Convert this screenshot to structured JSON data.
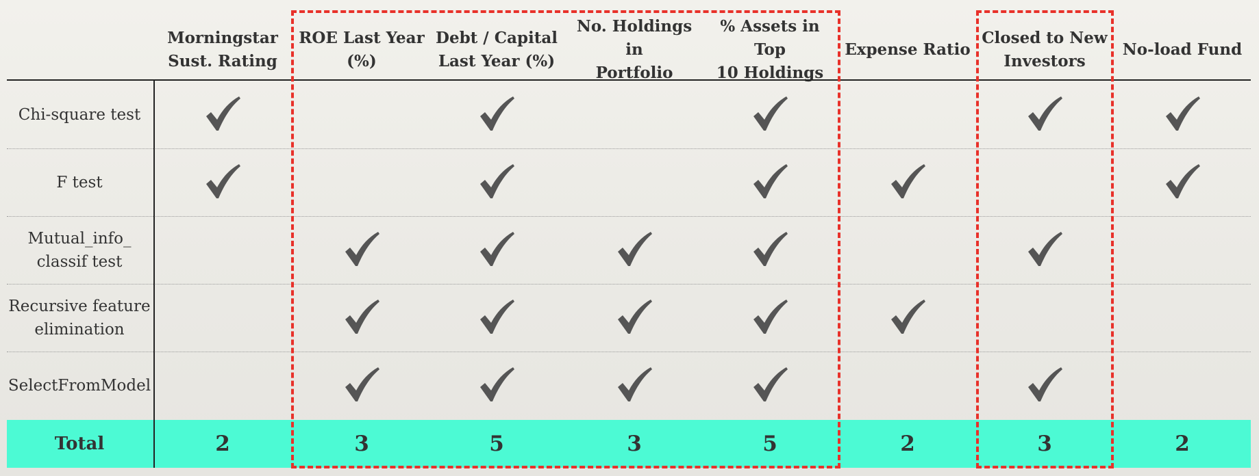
{
  "colors": {
    "check": "#555555",
    "total_band": "#4cfad4",
    "highlight_border": "#e8312a",
    "rule": "#222222"
  },
  "check_icon": "check-icon",
  "columns": [
    {
      "label": "Morningstar\nSust. Rating"
    },
    {
      "label": "ROE Last Year\n(%)"
    },
    {
      "label": "Debt / Capital\nLast Year (%)"
    },
    {
      "label": "No. Holdings in\nPortfolio"
    },
    {
      "label": "% Assets in Top\n10 Holdings"
    },
    {
      "label": "Expense Ratio"
    },
    {
      "label": "Closed to New\nInvestors"
    },
    {
      "label": "No-load Fund"
    }
  ],
  "rows": [
    {
      "label": "Chi-square test",
      "checks": [
        true,
        false,
        true,
        false,
        true,
        false,
        true,
        true
      ]
    },
    {
      "label": "F test",
      "checks": [
        true,
        false,
        true,
        false,
        true,
        true,
        false,
        true
      ]
    },
    {
      "label": "Mutual_info_\nclassif test",
      "checks": [
        false,
        true,
        true,
        true,
        true,
        false,
        true,
        false
      ]
    },
    {
      "label": "Recursive feature\nelimination",
      "checks": [
        false,
        true,
        true,
        true,
        true,
        true,
        false,
        false
      ]
    },
    {
      "label": "SelectFromModel",
      "checks": [
        false,
        true,
        true,
        true,
        true,
        false,
        true,
        false
      ]
    }
  ],
  "total": {
    "label": "Total",
    "values": [
      "2",
      "3",
      "5",
      "3",
      "5",
      "2",
      "3",
      "2"
    ]
  }
}
